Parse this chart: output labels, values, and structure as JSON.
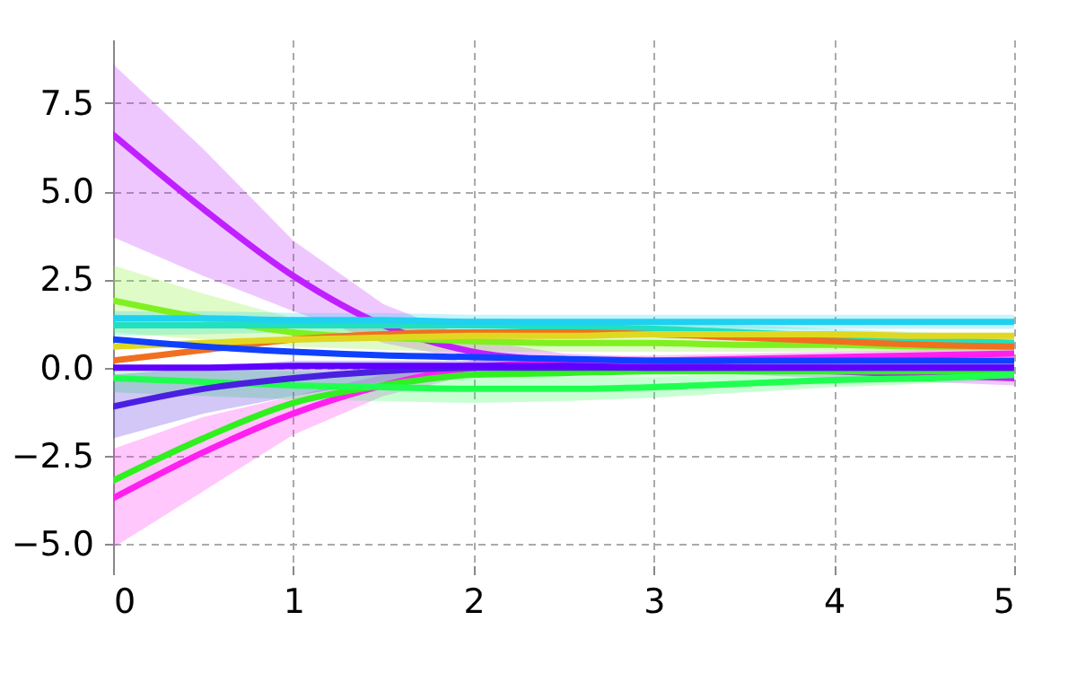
{
  "chart_data": {
    "type": "line",
    "x": [
      0,
      0.5,
      1,
      1.5,
      2,
      2.5,
      3,
      3.5,
      4,
      4.5,
      5
    ],
    "xlim": [
      0,
      5
    ],
    "xticks": [
      0,
      1,
      2,
      3,
      4,
      5
    ],
    "ylim": [
      -5.6,
      9.3
    ],
    "yticks": [
      {
        "value": -5,
        "label": "−5.0"
      },
      {
        "value": -2.5,
        "label": "−2.5"
      },
      {
        "value": 0,
        "label": "0.0"
      },
      {
        "value": 2.5,
        "label": "2.5"
      },
      {
        "value": 5,
        "label": "5.0"
      },
      {
        "value": 7.5,
        "label": "7.5"
      }
    ],
    "grid": true,
    "line_style": "solid",
    "marker": "none",
    "series": [
      {
        "color": "#c020ff",
        "values": [
          6.6,
          4.5,
          2.6,
          1.2,
          0.45,
          0.2,
          0.1,
          0.0,
          -0.1,
          -0.2,
          -0.3
        ],
        "lower": [
          3.7,
          2.6,
          1.6,
          0.7,
          0.2,
          0.0,
          -0.1,
          -0.2,
          -0.3,
          -0.4,
          -0.5
        ],
        "upper": [
          8.6,
          6.2,
          3.6,
          1.8,
          0.8,
          0.4,
          0.3,
          0.2,
          0.1,
          0.0,
          -0.1
        ]
      },
      {
        "color": "#ff20f0",
        "values": [
          -3.7,
          -2.4,
          -1.3,
          -0.5,
          0.0,
          0.15,
          0.2,
          0.25,
          0.3,
          0.35,
          0.4
        ],
        "lower": [
          -5.1,
          -3.5,
          -1.9,
          -0.8,
          -0.2,
          0.0,
          0.05,
          0.1,
          0.15,
          0.15,
          0.2
        ],
        "upper": [
          -2.3,
          -1.4,
          -0.8,
          -0.2,
          0.2,
          0.3,
          0.35,
          0.4,
          0.45,
          0.5,
          0.55
        ]
      },
      {
        "color": "#30f020",
        "values": [
          -3.2,
          -2.0,
          -1.0,
          -0.5,
          -0.2,
          -0.15,
          -0.1,
          -0.1,
          -0.1,
          -0.1,
          -0.1
        ]
      },
      {
        "color": "#20ff50",
        "values": [
          -0.3,
          -0.4,
          -0.5,
          -0.55,
          -0.6,
          -0.6,
          -0.55,
          -0.45,
          -0.35,
          -0.3,
          -0.2
        ],
        "lower": [
          -0.7,
          -0.8,
          -0.9,
          -0.95,
          -1.0,
          -0.95,
          -0.85,
          -0.7,
          -0.55,
          -0.45,
          -0.35
        ],
        "upper": [
          0.1,
          0.0,
          -0.1,
          -0.15,
          -0.2,
          -0.25,
          -0.25,
          -0.2,
          -0.15,
          -0.1,
          -0.05
        ]
      },
      {
        "color": "#4a20e0",
        "values": [
          -1.1,
          -0.6,
          -0.3,
          -0.1,
          0.0,
          0.0,
          0.0,
          0.0,
          0.0,
          0.0,
          0.0
        ],
        "lower": [
          -2.0,
          -1.3,
          -0.8,
          -0.4,
          -0.2,
          -0.15,
          -0.15,
          -0.15,
          -0.15,
          -0.15,
          -0.15
        ],
        "upper": [
          -0.2,
          0.0,
          0.2,
          0.2,
          0.2,
          0.15,
          0.15,
          0.15,
          0.15,
          0.15,
          0.15
        ]
      },
      {
        "color": "#80f020",
        "values": [
          1.9,
          1.4,
          1.0,
          0.85,
          0.75,
          0.7,
          0.7,
          0.65,
          0.65,
          0.6,
          0.6
        ],
        "lower": [
          1.0,
          0.8,
          0.6,
          0.5,
          0.45,
          0.45,
          0.45,
          0.45,
          0.45,
          0.45,
          0.45
        ],
        "upper": [
          2.9,
          2.1,
          1.4,
          1.2,
          1.05,
          0.95,
          0.95,
          0.85,
          0.85,
          0.8,
          0.8
        ]
      },
      {
        "color": "#20e0c0",
        "values": [
          1.2,
          1.2,
          1.2,
          1.2,
          1.2,
          1.15,
          1.1,
          1.0,
          0.9,
          0.8,
          0.7
        ],
        "lower": [
          0.9,
          0.95,
          1.0,
          1.0,
          1.0,
          0.95,
          0.9,
          0.8,
          0.7,
          0.6,
          0.5
        ],
        "upper": [
          1.5,
          1.45,
          1.4,
          1.4,
          1.4,
          1.35,
          1.3,
          1.2,
          1.1,
          1.0,
          0.9
        ]
      },
      {
        "color": "#20d0f0",
        "values": [
          1.4,
          1.4,
          1.35,
          1.35,
          1.3,
          1.3,
          1.3,
          1.3,
          1.3,
          1.3,
          1.3
        ],
        "lower": [
          1.2,
          1.2,
          1.15,
          1.15,
          1.1,
          1.1,
          1.1,
          1.1,
          1.1,
          1.1,
          1.1
        ],
        "upper": [
          1.6,
          1.6,
          1.55,
          1.55,
          1.5,
          1.5,
          1.5,
          1.5,
          1.5,
          1.5,
          1.5
        ]
      },
      {
        "color": "#f07020",
        "values": [
          0.2,
          0.5,
          0.8,
          0.95,
          1.0,
          1.0,
          0.95,
          0.85,
          0.75,
          0.65,
          0.6
        ]
      },
      {
        "color": "#e0d820",
        "values": [
          0.6,
          0.7,
          0.8,
          0.85,
          0.9,
          0.9,
          0.95,
          0.95,
          0.95,
          0.9,
          0.9
        ]
      },
      {
        "color": "#6000ff",
        "values": [
          0.0,
          0.0,
          0.05,
          0.05,
          0.05,
          0.05,
          0.0,
          0.0,
          0.0,
          0.0,
          0.0
        ]
      },
      {
        "color": "#1040ff",
        "values": [
          0.8,
          0.6,
          0.45,
          0.35,
          0.3,
          0.25,
          0.2,
          0.2,
          0.2,
          0.2,
          0.2
        ]
      }
    ]
  }
}
